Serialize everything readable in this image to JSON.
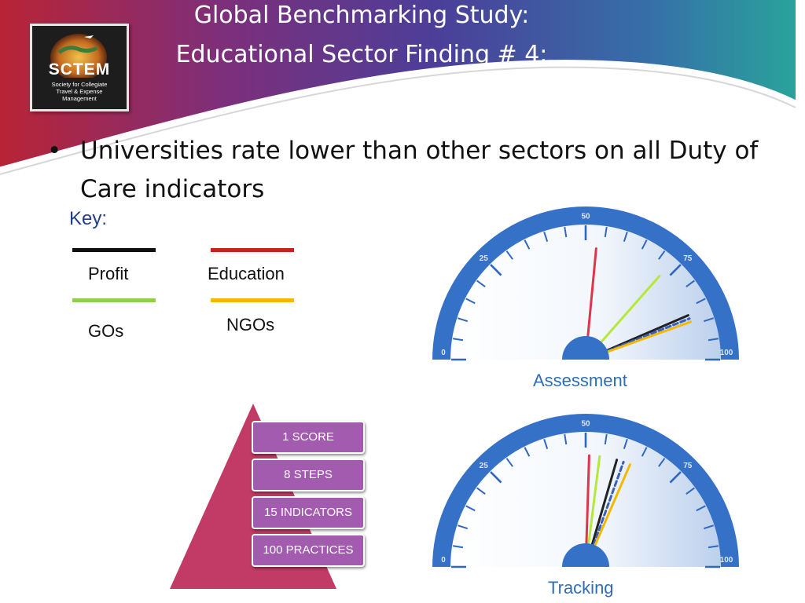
{
  "slide": {
    "title_line1": "Global Benchmarking Study:",
    "title_line2": "Educational Sector Finding # 4:",
    "bullet_marker": "•",
    "bullet_text": "Universities rate lower than other sectors on all Duty of Care indicators"
  },
  "logo": {
    "brand": "SCTEM",
    "tagline_1": "Society for Collegiate",
    "tagline_2": "Travel & Expense",
    "tagline_3": "Management"
  },
  "key": {
    "label": "Key:",
    "items": [
      {
        "name": "Profit",
        "color": "#111111"
      },
      {
        "name": "Education",
        "color": "#cc1f1f"
      },
      {
        "name": "GOs",
        "color": "#8ed04a"
      },
      {
        "name": "NGOs",
        "color": "#f5b800"
      }
    ]
  },
  "pyramid": {
    "color": "#c23a66",
    "steps": [
      "1 SCORE",
      "8 STEPS",
      "15 INDICATORS",
      "100 PRACTICES"
    ]
  },
  "gauges": [
    {
      "caption": "Assessment",
      "ticks": [
        "0",
        "25",
        "50",
        "75",
        "100"
      ],
      "needles": [
        {
          "sector": "Education",
          "value": 53,
          "color": "#e0344a"
        },
        {
          "sector": "GOs",
          "value": 73,
          "color": "#b6e83a"
        },
        {
          "sector": "Profit",
          "value": 87,
          "color": "#222222"
        },
        {
          "sector": "Profit (dashed)",
          "value": 88,
          "color": "#3a5fb8",
          "dashed": true
        },
        {
          "sector": "NGOs",
          "value": 89,
          "color": "#f5b800"
        }
      ]
    },
    {
      "caption": "Tracking",
      "ticks": [
        "0",
        "25",
        "50",
        "75",
        "100"
      ],
      "needles": [
        {
          "sector": "Education",
          "value": 51,
          "color": "#e0344a"
        },
        {
          "sector": "GOs",
          "value": 54,
          "color": "#b6e83a"
        },
        {
          "sector": "Profit",
          "value": 59,
          "color": "#222222"
        },
        {
          "sector": "Profit (dashed)",
          "value": 61,
          "color": "#3a5fb8",
          "dashed": true
        },
        {
          "sector": "NGOs",
          "value": 63,
          "color": "#f5b800"
        }
      ]
    }
  ],
  "colors": {
    "banner_left": "#b82436",
    "banner_mid": "#4e3e98",
    "banner_right": "#2a9c98",
    "gauge_blue": "#3671c8",
    "step_purple": "#a35bb0"
  }
}
